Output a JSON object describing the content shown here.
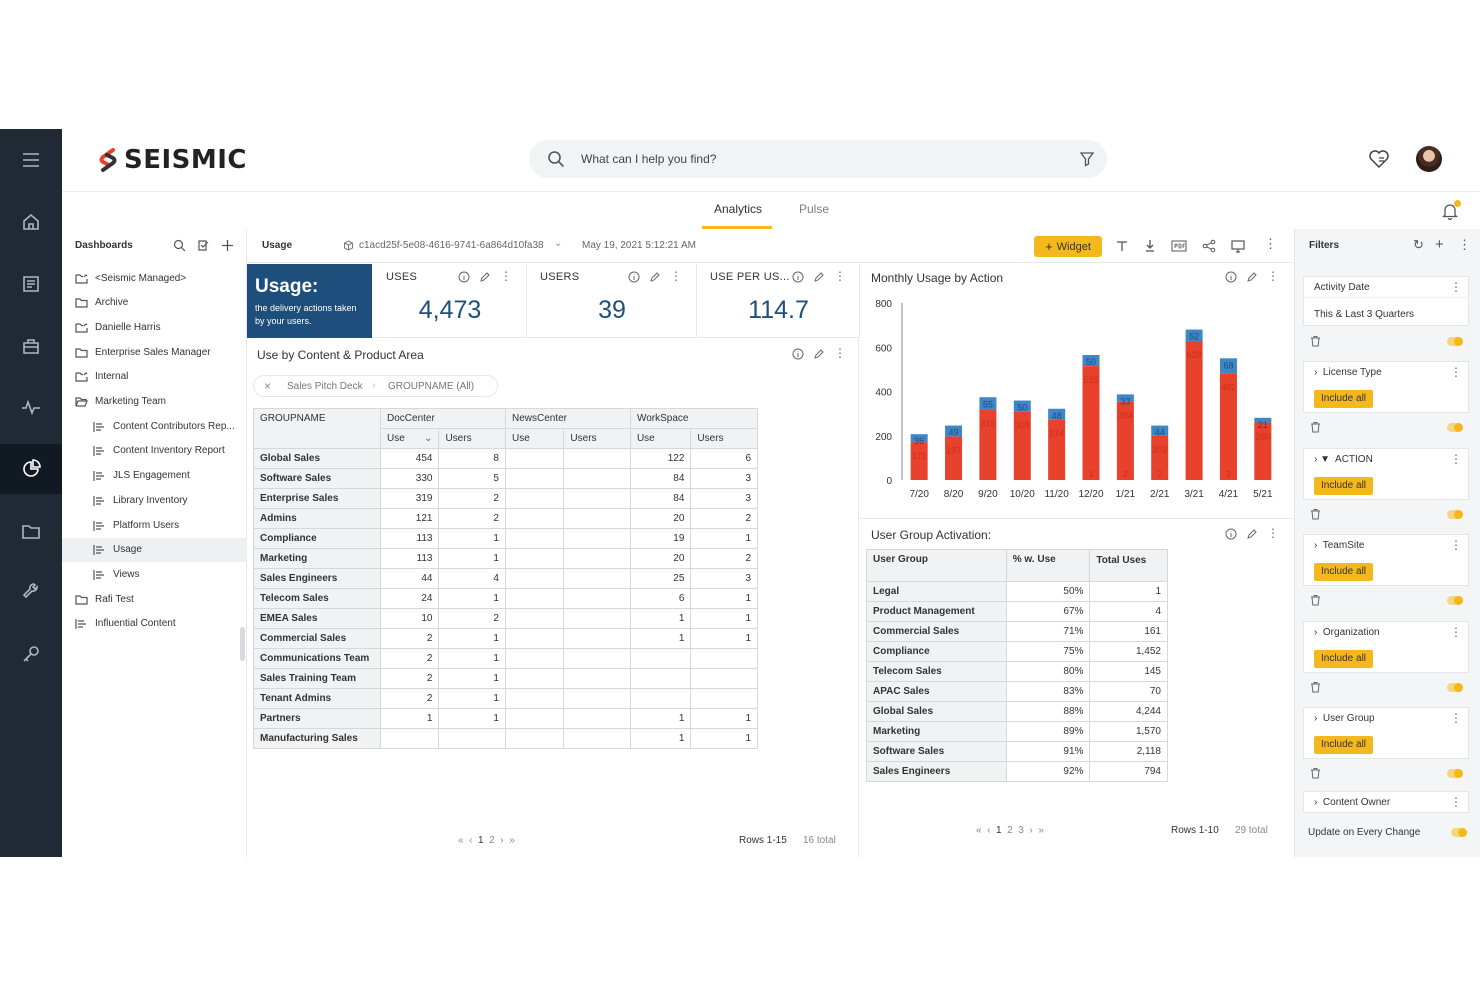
{
  "brand": {
    "name": "SEISMIC"
  },
  "search": {
    "placeholder": "What can I help you find?"
  },
  "tabs": [
    {
      "label": "Analytics",
      "active": true
    },
    {
      "label": "Pulse",
      "active": false
    }
  ],
  "dashboards": {
    "title": "Dashboards",
    "items": [
      {
        "label": "<Seismic Managed>",
        "icon": "shared-folder-icon",
        "indent": 0
      },
      {
        "label": "Archive",
        "icon": "folder-icon",
        "indent": 0
      },
      {
        "label": "Danielle Harris",
        "icon": "shared-folder-icon",
        "indent": 0
      },
      {
        "label": "Enterprise Sales Manager",
        "icon": "folder-icon",
        "indent": 0
      },
      {
        "label": "Internal",
        "icon": "shared-folder-icon",
        "indent": 0
      },
      {
        "label": "Marketing Team",
        "icon": "open-folder-icon",
        "indent": 0
      },
      {
        "label": "Content Contributors Rep...",
        "icon": "dashboard-icon",
        "indent": 1
      },
      {
        "label": "Content Inventory Report",
        "icon": "dashboard-icon",
        "indent": 1
      },
      {
        "label": "JLS Engagement",
        "icon": "dashboard-icon",
        "indent": 1
      },
      {
        "label": "Library Inventory",
        "icon": "dashboard-icon",
        "indent": 1
      },
      {
        "label": "Platform Users",
        "icon": "dashboard-icon",
        "indent": 1
      },
      {
        "label": "Usage",
        "icon": "dashboard-icon",
        "indent": 1,
        "active": true
      },
      {
        "label": "Views",
        "icon": "dashboard-icon",
        "indent": 1
      },
      {
        "label": "Rafi Test",
        "icon": "folder-icon",
        "indent": 0
      },
      {
        "label": "Influential Content",
        "icon": "dashboard-icon",
        "indent": 0
      }
    ]
  },
  "toolbar": {
    "title": "Usage",
    "dashboard_id": "c1acd25f-5e08-4616-9741-6a864d10fa38",
    "date": "May 19, 2021 5:12:21 AM",
    "widget_label": "Widget"
  },
  "kpis": {
    "usage_title": "Usage:",
    "usage_desc": "the delivery actions taken by your users.",
    "uses": {
      "label": "USES",
      "value": "4,473"
    },
    "users": {
      "label": "USERS",
      "value": "39"
    },
    "use_per_user": {
      "label": "USE PER US...",
      "value": "114.7"
    }
  },
  "ubc": {
    "title": "Use by Content & Product Area",
    "crumb1": "Sales Pitch Deck",
    "crumb2": "GROUPNAME (All)",
    "col_group": "GROUPNAME",
    "col_areas": [
      "DocCenter",
      "NewsCenter",
      "WorkSpace"
    ],
    "sub_use": "Use",
    "sub_users": "Users",
    "rows": [
      [
        "Global Sales",
        "454",
        "8",
        "",
        "",
        "122",
        "6"
      ],
      [
        "Software Sales",
        "330",
        "5",
        "",
        "",
        "84",
        "3"
      ],
      [
        "Enterprise Sales",
        "319",
        "2",
        "",
        "",
        "84",
        "3"
      ],
      [
        "Admins",
        "121",
        "2",
        "",
        "",
        "20",
        "2"
      ],
      [
        "Compliance",
        "113",
        "1",
        "",
        "",
        "19",
        "1"
      ],
      [
        "Marketing",
        "113",
        "1",
        "",
        "",
        "20",
        "2"
      ],
      [
        "Sales Engineers",
        "44",
        "4",
        "",
        "",
        "25",
        "3"
      ],
      [
        "Telecom Sales",
        "24",
        "1",
        "",
        "",
        "6",
        "1"
      ],
      [
        "EMEA Sales",
        "10",
        "2",
        "",
        "",
        "1",
        "1"
      ],
      [
        "Commercial Sales",
        "2",
        "1",
        "",
        "",
        "1",
        "1"
      ],
      [
        "Communications Team",
        "2",
        "1",
        "",
        "",
        "",
        ""
      ],
      [
        "Sales Training Team",
        "2",
        "1",
        "",
        "",
        "",
        ""
      ],
      [
        "Tenant Admins",
        "2",
        "1",
        "",
        "",
        "",
        ""
      ],
      [
        "Partners",
        "1",
        "1",
        "",
        "",
        "1",
        "1"
      ],
      [
        "Manufacturing Sales",
        "",
        "",
        "",
        "",
        "1",
        "1"
      ]
    ],
    "pager": {
      "pages": [
        "1",
        "2"
      ],
      "rows": "Rows 1-15",
      "total": "16 total"
    }
  },
  "chart_data": {
    "type": "bar",
    "title": "Monthly Usage by Action",
    "stacked": true,
    "categories": [
      "7/20",
      "8/20",
      "9/20",
      "10/20",
      "11/20",
      "12/20",
      "1/21",
      "2/21",
      "3/21",
      "4/21",
      "5/21"
    ],
    "series": [
      {
        "name": "",
        "color": "#e8412c",
        "values": [
          171,
          197,
          319,
          309,
          274,
          515,
          354,
          202,
          628,
          482,
          260
        ]
      },
      {
        "name": "",
        "color": "#3f86c6",
        "values": [
          36,
          49,
          55,
          50,
          48,
          50,
          33,
          44,
          52,
          68,
          21
        ]
      }
    ],
    "bottom_labels": [
      "",
      "",
      "",
      "",
      "",
      "1",
      "2",
      "2",
      "",
      "3",
      ""
    ],
    "ylim": [
      0,
      800
    ],
    "yticks": [
      0,
      200,
      400,
      600,
      800
    ],
    "grid": false
  },
  "ug": {
    "title": "User Group Activation:",
    "cols": [
      "User Group",
      "% w. Use",
      "Total Uses"
    ],
    "rows": [
      [
        "Legal",
        "50%",
        "1"
      ],
      [
        "Product Management",
        "67%",
        "4"
      ],
      [
        "Commercial Sales",
        "71%",
        "161"
      ],
      [
        "Compliance",
        "75%",
        "1,452"
      ],
      [
        "Telecom Sales",
        "80%",
        "145"
      ],
      [
        "APAC Sales",
        "83%",
        "70"
      ],
      [
        "Global Sales",
        "88%",
        "4,244"
      ],
      [
        "Marketing",
        "89%",
        "1,570"
      ],
      [
        "Software Sales",
        "91%",
        "2,118"
      ],
      [
        "Sales Engineers",
        "92%",
        "794"
      ]
    ],
    "pager": {
      "pages": [
        "1",
        "2",
        "3"
      ],
      "rows": "Rows 1-10",
      "total": "29 total"
    }
  },
  "filters": {
    "title": "Filters",
    "activity_date": {
      "label": "Activity Date",
      "value": "This & Last 3 Quarters"
    },
    "items": [
      {
        "label": "License Type",
        "prefix": "›"
      },
      {
        "label": "ACTION",
        "prefix": "› ▼"
      },
      {
        "label": "TeamSite",
        "prefix": "›"
      },
      {
        "label": "Organization",
        "prefix": "›"
      },
      {
        "label": "User Group",
        "prefix": "›"
      }
    ],
    "include_all": "Include all",
    "content_owner": "Content Owner",
    "update_label": "Update on Every Change"
  }
}
